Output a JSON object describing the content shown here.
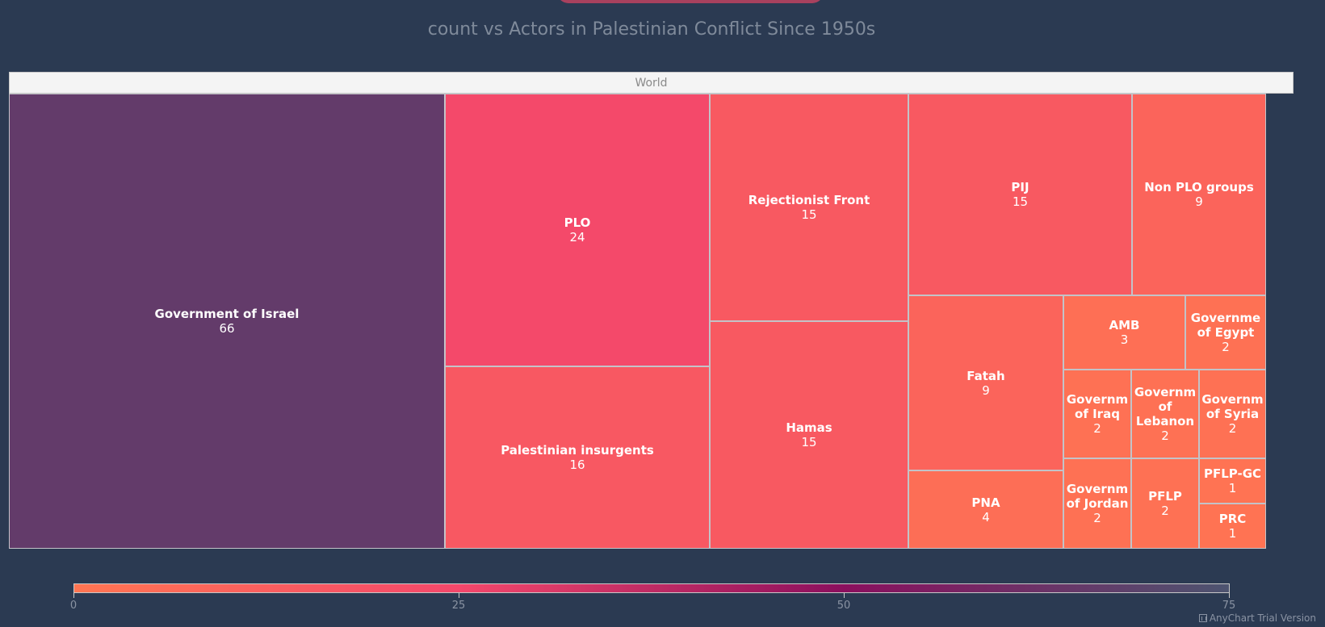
{
  "chart_data": {
    "type": "treemap",
    "title": "count vs Actors in Palestinian Conflict Since 1950s",
    "root": "World",
    "items": [
      {
        "name": "Government of Israel",
        "value": 66
      },
      {
        "name": "PLO",
        "value": 24
      },
      {
        "name": "Palestinian insurgents",
        "value": 16
      },
      {
        "name": "Rejectionist Front",
        "value": 15
      },
      {
        "name": "Hamas",
        "value": 15
      },
      {
        "name": "PIJ",
        "value": 15
      },
      {
        "name": "Non PLO groups",
        "value": 9
      },
      {
        "name": "Fatah",
        "value": 9
      },
      {
        "name": "PNA",
        "value": 4
      },
      {
        "name": "AMB",
        "value": 3
      },
      {
        "name": "Governme of Egypt",
        "value": 2
      },
      {
        "name": "Governm of Iraq",
        "value": 2
      },
      {
        "name": "Governm of Lebanon",
        "value": 2
      },
      {
        "name": "Governm of Syria",
        "value": 2
      },
      {
        "name": "Governm of Jordan",
        "value": 2
      },
      {
        "name": "PFLP",
        "value": 2
      },
      {
        "name": "PFLP-GC",
        "value": 1
      },
      {
        "name": "PRC",
        "value": 1
      }
    ],
    "color_scale": {
      "range": [
        0,
        75
      ],
      "ticks": [
        0,
        25,
        50,
        75
      ],
      "colors": [
        "#ff7552",
        "#f4476b",
        "#8b0f5e",
        "#4d5470"
      ]
    }
  },
  "credits": "AnyChart Trial Version"
}
